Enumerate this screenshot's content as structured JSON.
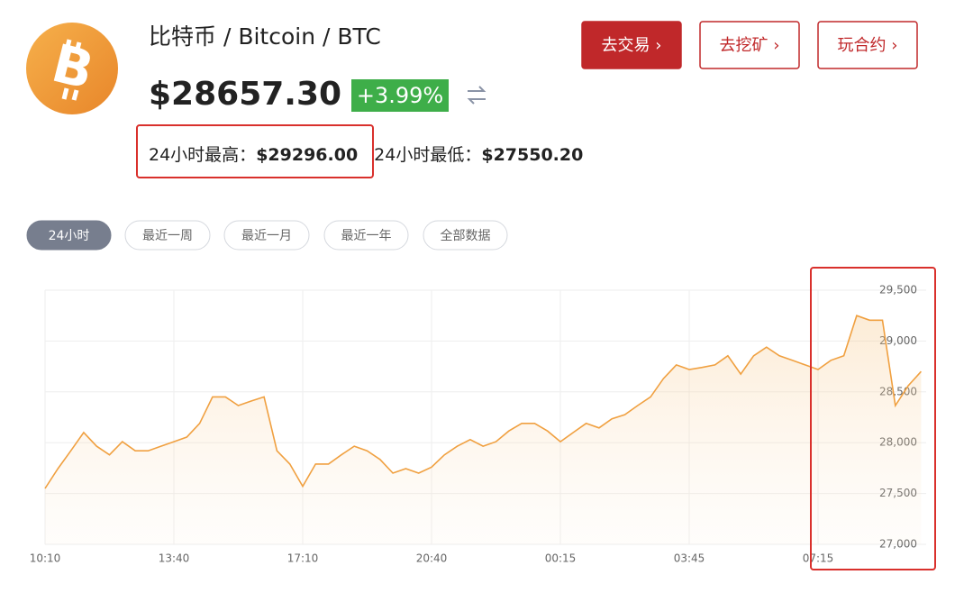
{
  "header": {
    "logo_letter": "B",
    "title": "比特币 / Bitcoin / BTC",
    "price": "$28657.30",
    "change": "+3.99%",
    "high_label": "24小时最高：",
    "high": "$29296.00",
    "low_label": "24小时最低：",
    "low": "$27550.20"
  },
  "buttons": [
    "去交易 ›",
    "去挖矿 ›",
    "玩合约 ›"
  ],
  "tabs": [
    "24小时",
    "最近一周",
    "最近一月",
    "最近一年",
    "全部数据"
  ],
  "chart_data": {
    "type": "line",
    "color": "#f0a040",
    "categories": [
      "10:10",
      null,
      null,
      null,
      null,
      null,
      null,
      null,
      null,
      null,
      "13:40",
      null,
      null,
      null,
      null,
      null,
      null,
      null,
      null,
      null,
      "17:10",
      null,
      null,
      null,
      null,
      null,
      null,
      null,
      null,
      null,
      "20:40",
      null,
      null,
      null,
      null,
      null,
      null,
      null,
      null,
      null,
      "00:15",
      null,
      null,
      null,
      null,
      null,
      null,
      null,
      null,
      null,
      "03:45",
      null,
      null,
      null,
      null,
      null,
      null,
      null,
      null,
      null,
      "07:15",
      null,
      null,
      null,
      null,
      null,
      null,
      null,
      null
    ],
    "values": [
      27550,
      27745,
      27920,
      28100,
      27965,
      27880,
      28010,
      27920,
      27920,
      27965,
      28010,
      28055,
      28190,
      28450,
      28450,
      28365,
      28410,
      28450,
      27920,
      27790,
      27570,
      27790,
      27790,
      27880,
      27965,
      27920,
      27835,
      27700,
      27745,
      27700,
      27760,
      27880,
      27965,
      28030,
      27965,
      28010,
      28115,
      28190,
      28190,
      28115,
      28010,
      28100,
      28190,
      28145,
      28235,
      28275,
      28365,
      28450,
      28630,
      28765,
      28720,
      28740,
      28765,
      28855,
      28675,
      28855,
      28940,
      28855,
      28810,
      28765,
      28720,
      28810,
      28855,
      29250,
      29205,
      29205,
      28365,
      28560,
      28700
    ],
    "ylim": [
      27000,
      29500
    ],
    "yticks": [
      {
        "value": 27000,
        "label": "27,000"
      },
      {
        "value": 27500,
        "label": "27,500"
      },
      {
        "value": 28000,
        "label": "28,000"
      },
      {
        "value": 28500,
        "label": "28,500"
      },
      {
        "value": 29000,
        "label": "29,000"
      },
      {
        "value": 29500,
        "label": "29,500"
      }
    ],
    "grid": true
  }
}
